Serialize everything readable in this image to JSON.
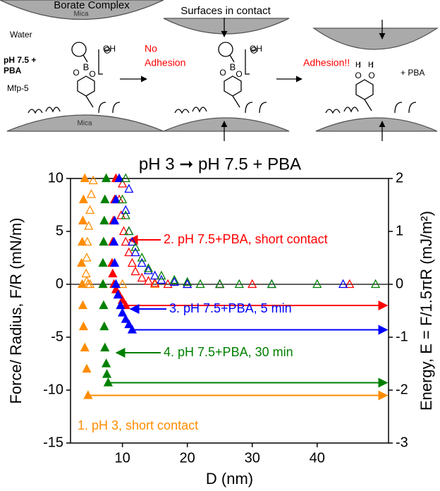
{
  "schematic": {
    "labels": [
      "Borate Complex",
      "Mica",
      "Water",
      "pH 7.5 +",
      "PBA",
      "Mfp-5",
      "Mica",
      "OH",
      "B",
      "O",
      "O",
      "⊖",
      "Surfaces in contact",
      "No",
      "Adhesion",
      "OH",
      "B",
      "O",
      "O",
      "⊖",
      "Adhesion!!",
      "H",
      "H",
      "O",
      "O",
      "+ PBA"
    ]
  },
  "chart_data": {
    "type": "scatter",
    "title": "pH 3 ➞ pH 7.5 + PBA",
    "x_label": "D (nm)",
    "y_label": "Force/ Radius, F/R (mN/m)",
    "y2_label": "Energy, E = F/1.5πR (mJ/m²)",
    "xlim": [
      2,
      51
    ],
    "xticks": [
      10,
      20,
      30,
      40
    ],
    "ylim": [
      -15,
      10
    ],
    "yticks": [
      -15,
      -10,
      -5,
      0,
      5,
      10
    ],
    "y2lim": [
      -3,
      2
    ],
    "y2ticks": [
      -3,
      -2,
      -1,
      0,
      1,
      2
    ],
    "series": [
      {
        "name": "1. pH 3, short contact",
        "color": "#ff8c00",
        "approach": {
          "x": [
            5.5,
            5.2,
            5.0,
            4.8,
            4.6,
            4.5,
            4.4,
            4.5,
            4.7,
            5.0,
            7,
            10,
            15,
            25
          ],
          "values": [
            9.8,
            8.5,
            7,
            5.5,
            4,
            2.5,
            1,
            0.3,
            0,
            0,
            0,
            0,
            0,
            0
          ]
        },
        "separation": {
          "x": [
            4.2,
            4.0,
            3.9,
            3.8,
            3.7,
            3.8,
            3.9,
            4.0,
            4.2,
            4.5,
            4.7
          ],
          "values": [
            10,
            8,
            6,
            4,
            2,
            0,
            -2,
            -4,
            -6,
            -8,
            -10.5
          ]
        }
      },
      {
        "name": "2. pH 7.5+PBA, short contact",
        "color": "#ff0000",
        "approach": {
          "x": [
            10,
            9.5,
            9.8,
            10.2,
            10.5,
            11,
            11.5,
            12,
            13,
            14,
            15,
            17,
            20,
            25,
            30,
            45
          ],
          "values": [
            9.5,
            8,
            6.5,
            5,
            4,
            3,
            2,
            1.2,
            0.6,
            0.3,
            0.1,
            0,
            0,
            0,
            0,
            0
          ]
        },
        "separation": {
          "x": [
            9,
            8.8,
            8.6,
            8.5,
            8.4,
            8.5,
            8.7,
            9,
            9.5,
            10,
            10.5
          ],
          "values": [
            10,
            8,
            6,
            4,
            2,
            1,
            0,
            -0.5,
            -1,
            -1.5,
            -2
          ]
        }
      },
      {
        "name": "3. pH 7.5+PBA, 5 min",
        "color": "#0000ff",
        "approach": {
          "x": [
            11,
            10.5,
            11,
            11.5,
            12,
            13,
            14,
            15,
            16,
            18,
            20,
            25,
            33,
            44
          ],
          "values": [
            9,
            7,
            5,
            4,
            3,
            2,
            1.3,
            0.8,
            0.4,
            0.2,
            0,
            0,
            0,
            0
          ]
        },
        "separation": {
          "x": [
            9.5,
            9,
            8.8,
            8.7,
            8.8,
            9,
            9.3,
            9.7,
            10,
            10.5,
            11,
            11.5
          ],
          "values": [
            10,
            8,
            6,
            4,
            2,
            0,
            -1,
            -2,
            -2.7,
            -3.3,
            -3.8,
            -4.3
          ]
        }
      },
      {
        "name": "4. pH 7.5+PBA, 30 min",
        "color": "#008000",
        "approach": {
          "x": [
            10.5,
            10,
            10.5,
            11,
            12,
            13,
            14,
            16,
            18,
            20,
            22,
            25,
            28,
            33,
            40,
            49
          ],
          "values": [
            10,
            8,
            6.5,
            5,
            3.5,
            2.5,
            1.5,
            0.8,
            0.4,
            0.2,
            0,
            0,
            0,
            0,
            0,
            0
          ]
        },
        "separation": {
          "x": [
            7.5,
            7.3,
            7.2,
            7.1,
            7.0,
            7.0,
            7.1,
            7.2,
            7.3,
            7.5,
            7.6,
            7.8
          ],
          "values": [
            10,
            8,
            6,
            4,
            2,
            0,
            -2,
            -4,
            -6,
            -7.5,
            -8.5,
            -9.3
          ]
        }
      }
    ]
  }
}
